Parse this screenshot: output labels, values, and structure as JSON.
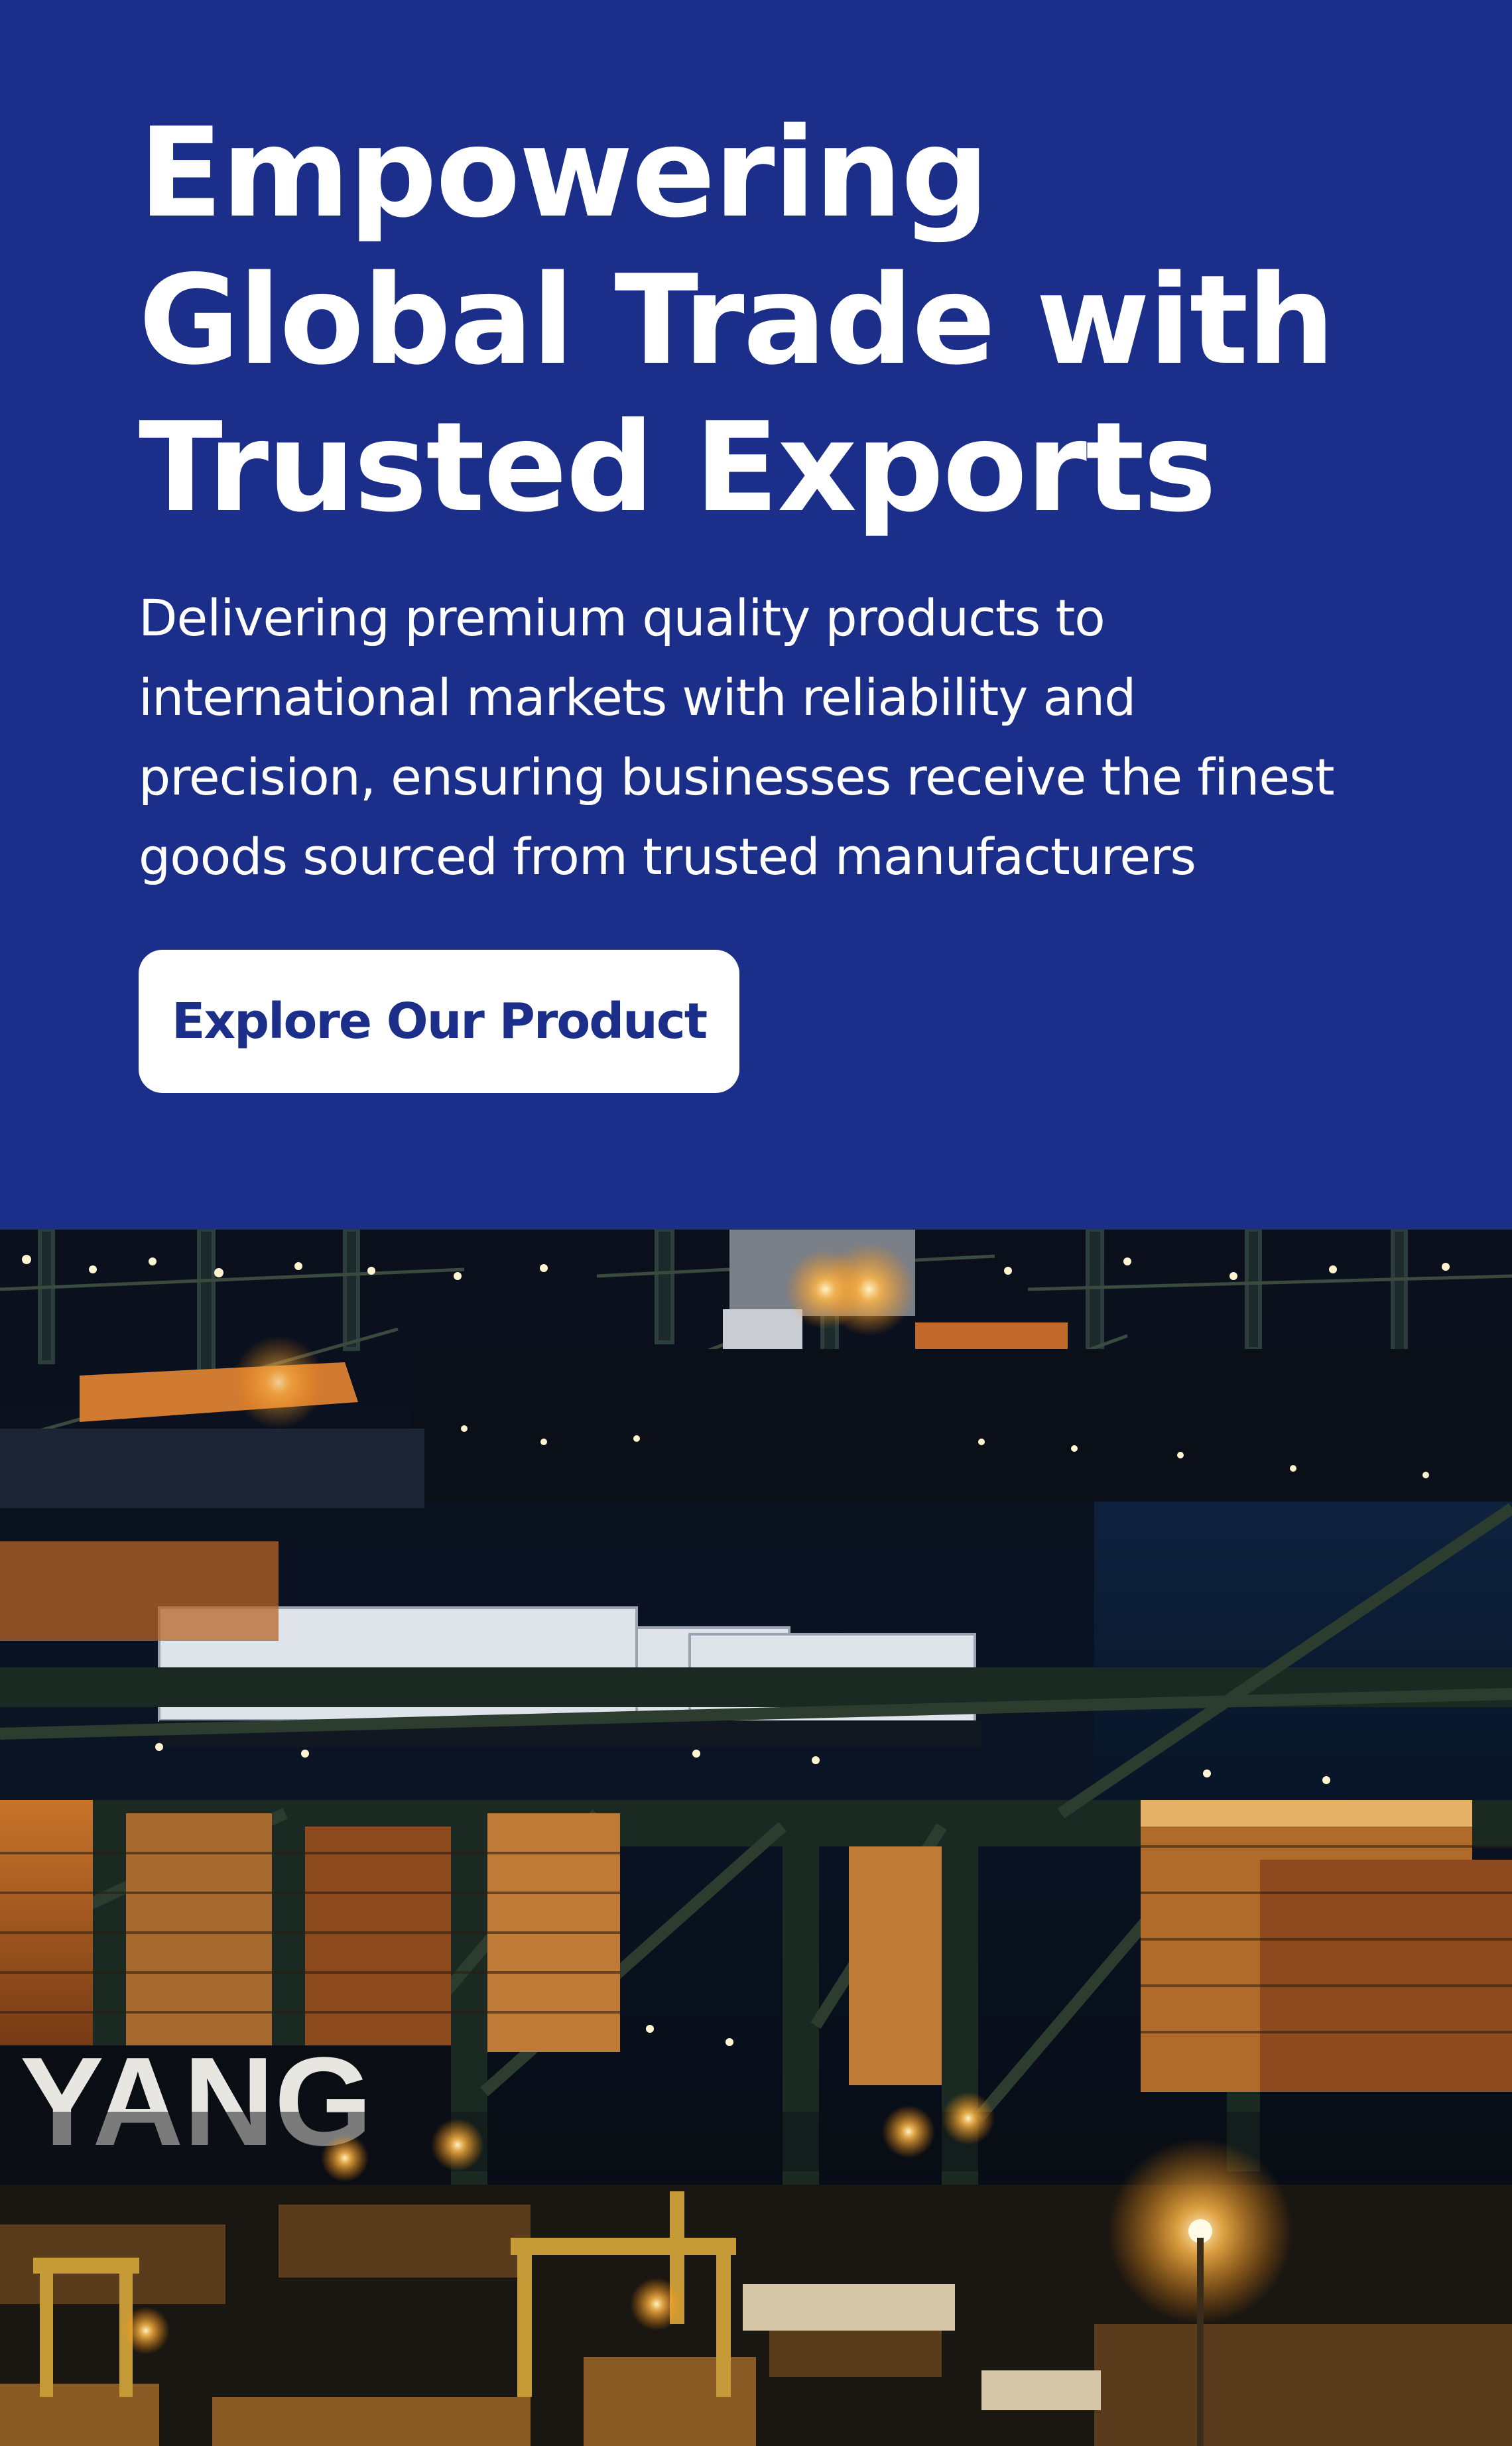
{
  "hero": {
    "title": "Empowering Global Trade with Trusted Exports",
    "subtitle": "Delivering premium quality products to international markets with reliability and precision, ensuring businesses receive the finest goods sourced from trusted manufacturers",
    "cta_label": "Explore Our Product",
    "colors": {
      "background": "#1b2f8a",
      "text": "#ffffff",
      "button_background": "#ffffff",
      "button_text": "#1b2f8a"
    }
  },
  "photo": {
    "subject": "container-port-at-night",
    "ship_lettering": "YANG"
  }
}
